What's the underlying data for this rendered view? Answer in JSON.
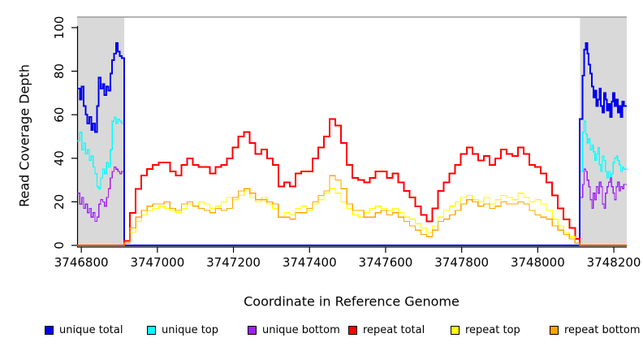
{
  "figure": {
    "y_axis_label": "Read Coverage Depth",
    "x_axis_label": "Coordinate in Reference Genome"
  },
  "legend": {
    "items": [
      {
        "label": "unique total",
        "color": "#0000EE"
      },
      {
        "label": "unique top",
        "color": "#00FFFF"
      },
      {
        "label": "unique bottom",
        "color": "#A020F0"
      },
      {
        "label": "repeat total",
        "color": "#FF0000"
      },
      {
        "label": "repeat top",
        "color": "#FFFF00"
      },
      {
        "label": "repeat bottom",
        "color": "#FFA500"
      }
    ]
  },
  "chart_data": {
    "type": "line",
    "title": "",
    "xlabel": "Coordinate in Reference Genome",
    "ylabel": "Read Coverage Depth",
    "xlim": [
      3746789,
      3748234
    ],
    "ylim": [
      0,
      100
    ],
    "x_ticks": [
      3746800,
      3747000,
      3747200,
      3747400,
      3747600,
      3747800,
      3748000,
      3748200
    ],
    "y_ticks": [
      0,
      20,
      40,
      60,
      80,
      100
    ],
    "step_style": "step-after",
    "grid": false,
    "legend_position": "bottom",
    "colors": {
      "shaded_region": "#D9D9D9",
      "plot_top_border": "#9B9B9B",
      "axis": "#000000",
      "background": "#FFFFFF"
    },
    "shaded_regions": [
      {
        "name": "unique-left",
        "start": 3746789,
        "end": 3746913
      },
      {
        "name": "unique-right",
        "start": 3748111,
        "end": 3748234
      }
    ],
    "repeat_region": {
      "start": 3746913,
      "end": 3748110
    },
    "series": [
      {
        "name": "unique total",
        "color": "#0000EE",
        "width": 2,
        "kind": "unique",
        "left": {
          "x_start": 3746791,
          "x_step": 5,
          "values": [
            72,
            67,
            73,
            64,
            60,
            56,
            59,
            53,
            56,
            52,
            64,
            77,
            72,
            74,
            69,
            73,
            71,
            79,
            85,
            88,
            93,
            89,
            87,
            86
          ]
        },
        "right": {
          "x_start": 3748114,
          "x_step": 4,
          "values": [
            58,
            78,
            90,
            93,
            88,
            83,
            79,
            73,
            68,
            71,
            64,
            67,
            72,
            64,
            61,
            70,
            67,
            62,
            65,
            59,
            66,
            70,
            64,
            67,
            61,
            64,
            59,
            66,
            64
          ]
        }
      },
      {
        "name": "unique top",
        "color": "#00FFFF",
        "width": 1.3,
        "kind": "unique",
        "left": {
          "x_start": 3746791,
          "x_step": 5,
          "values": [
            48,
            52,
            44,
            47,
            42,
            44,
            39,
            41,
            36,
            33,
            27,
            26,
            31,
            35,
            33,
            38,
            36,
            44,
            57,
            59,
            56,
            58,
            57,
            56
          ]
        },
        "right": {
          "x_start": 3748114,
          "x_step": 4,
          "values": [
            34,
            52,
            57,
            51,
            47,
            49,
            44,
            46,
            43,
            39,
            42,
            45,
            37,
            34,
            41,
            39,
            34,
            31,
            34,
            29,
            33,
            38,
            40,
            41,
            39,
            37,
            34,
            36,
            35
          ]
        }
      },
      {
        "name": "unique bottom",
        "color": "#A020F0",
        "width": 1.3,
        "kind": "unique",
        "left": {
          "x_start": 3746791,
          "x_step": 5,
          "values": [
            24,
            19,
            22,
            17,
            19,
            15,
            17,
            13,
            15,
            11,
            13,
            19,
            21,
            20,
            18,
            22,
            26,
            31,
            34,
            36,
            35,
            34,
            33,
            34
          ]
        },
        "right": {
          "x_start": 3748114,
          "x_step": 4,
          "values": [
            22,
            28,
            35,
            34,
            30,
            27,
            21,
            17,
            24,
            21,
            27,
            24,
            29,
            27,
            19,
            17,
            24,
            27,
            29,
            31,
            27,
            24,
            21,
            27,
            29,
            25,
            27,
            26,
            28
          ]
        }
      },
      {
        "name": "repeat total",
        "color": "#FF0000",
        "width": 2,
        "kind": "repeat",
        "middle": {
          "x_start": 3746913,
          "x_step": 15,
          "values": [
            2,
            15,
            26,
            32,
            35,
            37,
            38,
            38,
            34,
            32,
            37,
            40,
            37,
            36,
            36,
            33,
            36,
            37,
            40,
            45,
            50,
            52,
            47,
            42,
            44,
            40,
            37,
            27,
            29,
            27,
            33,
            34,
            34,
            40,
            45,
            50,
            58,
            55,
            47,
            37,
            31,
            30,
            29,
            31,
            34,
            34,
            31,
            33,
            29,
            25,
            22,
            18,
            14,
            11,
            17,
            25,
            29,
            33,
            37,
            42,
            45,
            42,
            39,
            41,
            37,
            40,
            44,
            42,
            41,
            45,
            42,
            37,
            36,
            33,
            29,
            23,
            17,
            12,
            8,
            3
          ]
        }
      },
      {
        "name": "repeat top",
        "color": "#FFFF00",
        "width": 1.2,
        "kind": "repeat",
        "middle": {
          "x_start": 3746913,
          "x_step": 15,
          "values": [
            1,
            6,
            11,
            14,
            16,
            17,
            18,
            17,
            16,
            15,
            17,
            19,
            18,
            20,
            19,
            17,
            18,
            20,
            22,
            21,
            23,
            25,
            22,
            20,
            22,
            19,
            17,
            13,
            15,
            14,
            17,
            18,
            16,
            19,
            21,
            24,
            26,
            24,
            20,
            17,
            14,
            13,
            15,
            17,
            18,
            17,
            16,
            17,
            15,
            13,
            12,
            10,
            8,
            6,
            9,
            13,
            16,
            18,
            20,
            22,
            23,
            21,
            20,
            22,
            19,
            21,
            23,
            22,
            21,
            24,
            22,
            20,
            21,
            19,
            16,
            12,
            9,
            6,
            4,
            1
          ]
        }
      },
      {
        "name": "repeat bottom",
        "color": "#FFA500",
        "width": 1.2,
        "kind": "repeat",
        "middle": {
          "x_start": 3746913,
          "x_step": 15,
          "values": [
            1,
            8,
            13,
            16,
            18,
            19,
            19,
            20,
            17,
            16,
            19,
            20,
            18,
            17,
            16,
            15,
            17,
            16,
            17,
            22,
            25,
            26,
            24,
            21,
            21,
            20,
            19,
            13,
            13,
            12,
            15,
            15,
            17,
            20,
            23,
            25,
            32,
            30,
            26,
            19,
            16,
            16,
            13,
            13,
            15,
            16,
            14,
            15,
            13,
            11,
            9,
            7,
            5,
            4,
            7,
            11,
            12,
            14,
            16,
            19,
            21,
            20,
            18,
            19,
            17,
            18,
            20,
            19,
            19,
            20,
            19,
            16,
            14,
            13,
            12,
            9,
            7,
            5,
            3,
            1
          ]
        }
      }
    ]
  }
}
